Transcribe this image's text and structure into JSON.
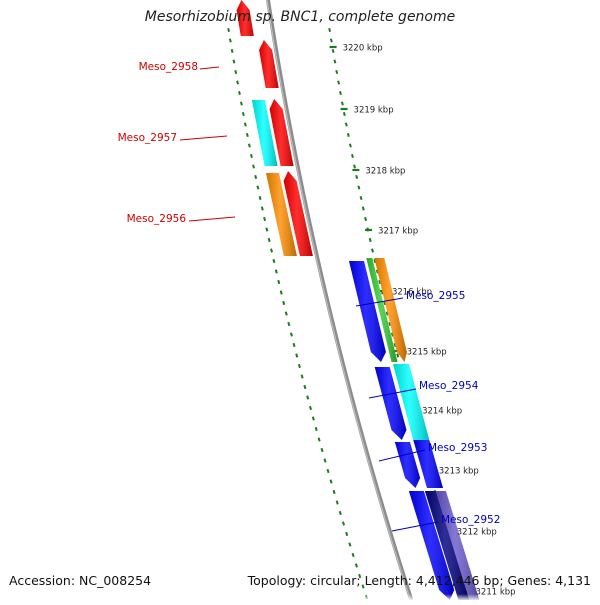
{
  "title": "Mesorhizobium sp. BNC1, complete genome",
  "footer": {
    "accession": "Accession: NC_008254",
    "summary": "Topology: circular; Length: 4,412,446 bp; Genes: 4,131"
  },
  "colors": {
    "backbone": "#8c8c8c",
    "ruler": "#1e7a1e",
    "left_labels": "#cc0000",
    "right_labels": "#0000bb"
  },
  "ticks": [
    {
      "label": "3220 kbp"
    },
    {
      "label": "3219 kbp"
    },
    {
      "label": "3218 kbp"
    },
    {
      "label": "3217 kbp"
    },
    {
      "label": "3216 kbp"
    },
    {
      "label": "3215 kbp"
    },
    {
      "label": "3214 kbp"
    },
    {
      "label": "3213 kbp"
    },
    {
      "label": "3212 kbp"
    },
    {
      "label": "3211 kbp"
    }
  ],
  "gene_labels": [
    {
      "name": "Meso_2958",
      "color": "#cc0000"
    },
    {
      "name": "Meso_2957",
      "color": "#cc0000"
    },
    {
      "name": "Meso_2956",
      "color": "#cc0000"
    },
    {
      "name": "Meso_2955",
      "color": "#0000bb"
    },
    {
      "name": "Meso_2954",
      "color": "#0000bb"
    },
    {
      "name": "Meso_2953",
      "color": "#0000bb"
    },
    {
      "name": "Meso_2952",
      "color": "#0000bb"
    }
  ],
  "features": [
    {
      "color": "#ff0000",
      "strand": "left-outer"
    },
    {
      "color": "#ff0000",
      "strand": "left-inner"
    },
    {
      "color": "#00ffff",
      "strand": "left-outer"
    },
    {
      "color": "#ff0000",
      "strand": "left-inner"
    },
    {
      "color": "#ff8c00",
      "strand": "left-outer"
    },
    {
      "color": "#ff0000",
      "strand": "left-inner"
    },
    {
      "color": "#0000ff",
      "strand": "right-inner"
    },
    {
      "color": "#33cc33",
      "strand": "right-mid"
    },
    {
      "color": "#ff8c00",
      "strand": "right-outer"
    },
    {
      "color": "#0000ff",
      "strand": "right-inner"
    },
    {
      "color": "#00ffff",
      "strand": "right-outer"
    },
    {
      "color": "#0000ff",
      "strand": "right-inner"
    },
    {
      "color": "#0000ff",
      "strand": "right-outer"
    },
    {
      "color": "#0000ff",
      "strand": "right-inner"
    },
    {
      "color": "#000080",
      "strand": "right-mid"
    },
    {
      "color": "#6a5acd",
      "strand": "right-outer"
    }
  ]
}
